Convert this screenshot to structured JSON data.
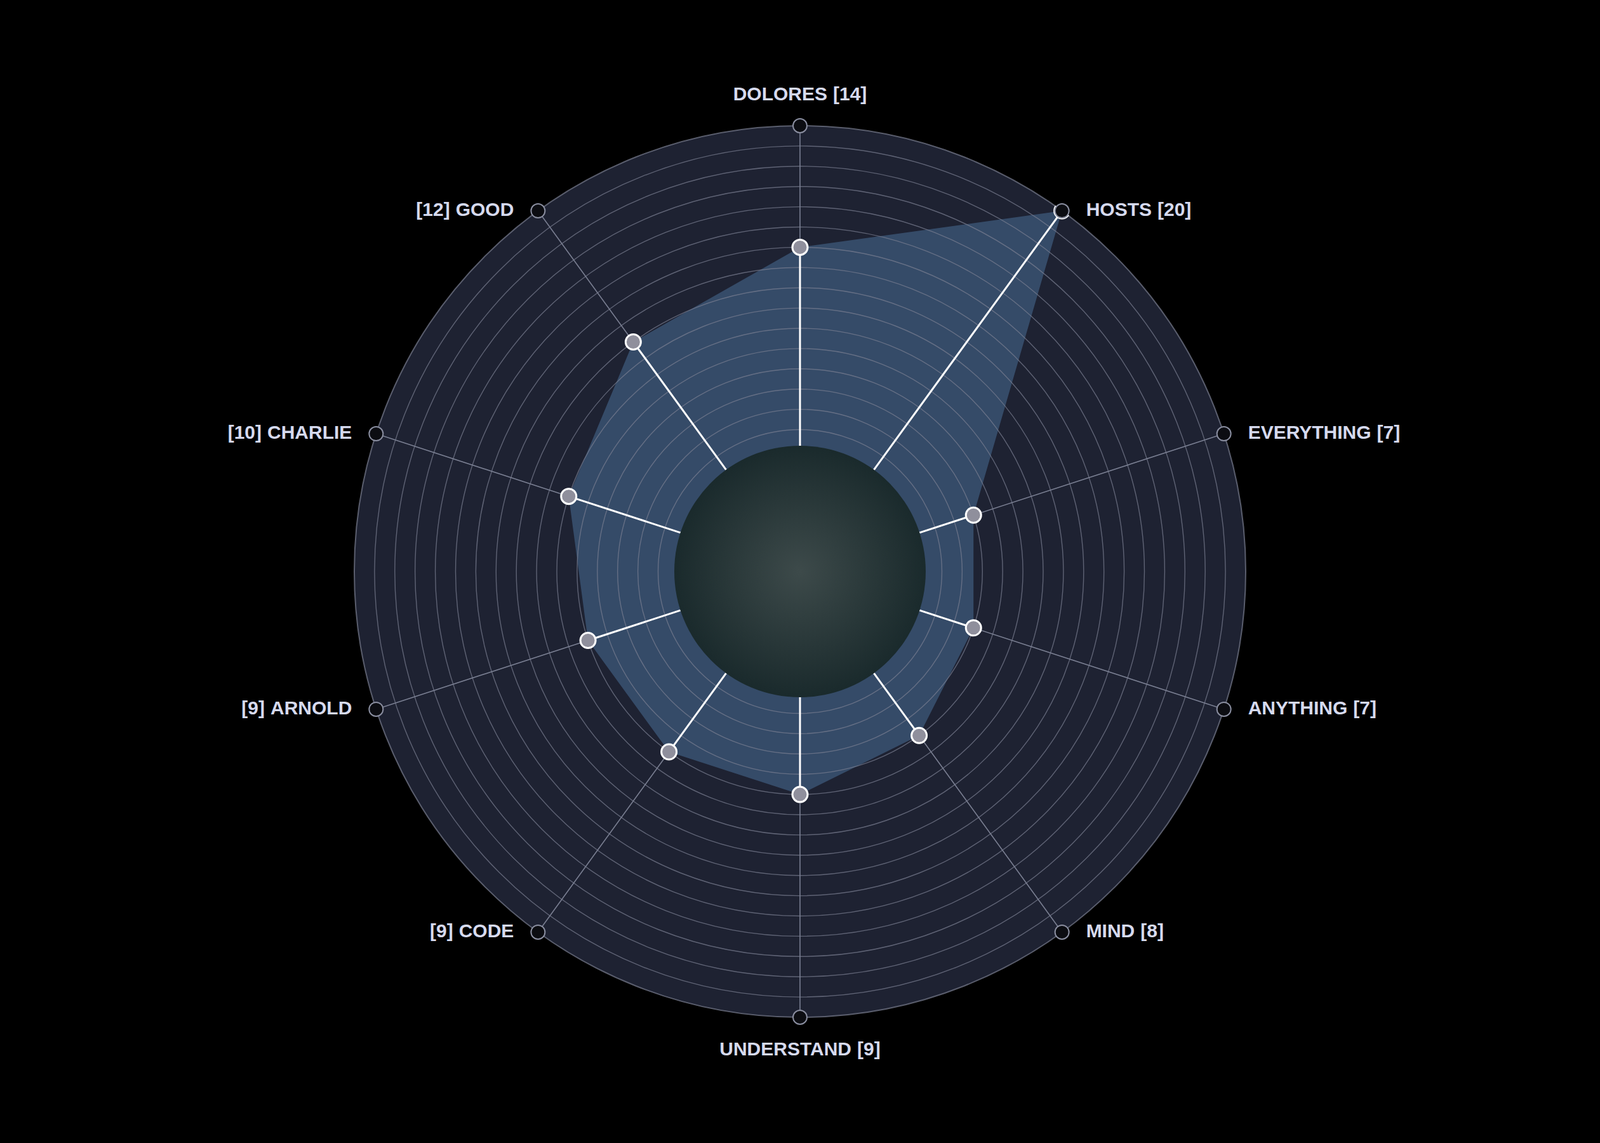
{
  "chart_data": {
    "type": "radar",
    "categories": [
      "DOLORES",
      "HOSTS",
      "EVERYTHING",
      "ANYTHING",
      "MIND",
      "UNDERSTAND",
      "CODE",
      "ARNOLD",
      "CHARLIE",
      "GOOD"
    ],
    "values": [
      14,
      20,
      7,
      7,
      8,
      9,
      9,
      9,
      10,
      12
    ],
    "value_labels": [
      "[14]",
      "[20]",
      "[7]",
      "[7]",
      "[8]",
      "[9]",
      "[9]",
      "[9]",
      "[10]",
      "[12]"
    ],
    "rlim": [
      0,
      20
    ],
    "rticks": [
      5,
      6,
      7,
      8,
      9,
      10,
      11,
      12,
      13,
      14,
      15,
      16,
      17,
      18,
      19,
      20
    ],
    "tick_labels": false,
    "grid": true,
    "color": "#3a5272"
  }
}
